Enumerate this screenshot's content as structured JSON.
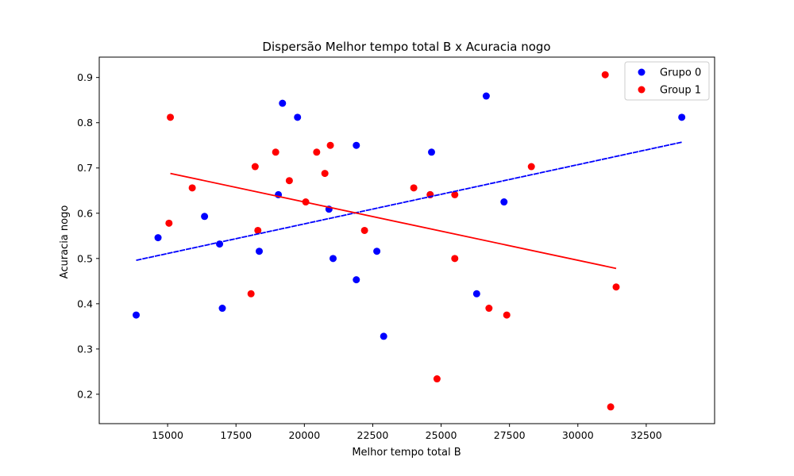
{
  "chart_data": {
    "type": "scatter",
    "title": "Dispersão Melhor tempo total B x Acuracia nogo",
    "xlabel": "Melhor tempo total B",
    "ylabel": "Acuracia nogo",
    "xlim": [
      12500,
      35000
    ],
    "ylim": [
      0.135,
      0.945
    ],
    "xticks": [
      15000,
      17500,
      20000,
      22500,
      25000,
      27500,
      30000,
      32500
    ],
    "yticks": [
      0.2,
      0.3,
      0.4,
      0.5,
      0.6,
      0.7,
      0.8,
      0.9
    ],
    "grid": false,
    "legend_position": "top-right",
    "series": [
      {
        "name": "Grupo 0",
        "color": "#0000ff",
        "points": [
          [
            13850,
            0.375
          ],
          [
            14650,
            0.546
          ],
          [
            16350,
            0.593
          ],
          [
            16900,
            0.532
          ],
          [
            17000,
            0.39
          ],
          [
            18350,
            0.516
          ],
          [
            19050,
            0.641
          ],
          [
            19200,
            0.843
          ],
          [
            19750,
            0.812
          ],
          [
            20900,
            0.609
          ],
          [
            21050,
            0.5
          ],
          [
            21900,
            0.75
          ],
          [
            21900,
            0.453
          ],
          [
            22650,
            0.516
          ],
          [
            22900,
            0.328
          ],
          [
            24650,
            0.735
          ],
          [
            24600,
            0.641
          ],
          [
            26300,
            0.422
          ],
          [
            26650,
            0.859
          ],
          [
            27300,
            0.625
          ],
          [
            33800,
            0.812
          ]
        ],
        "trend": {
          "x": [
            13850,
            33800
          ],
          "y": [
            0.496,
            0.757
          ]
        }
      },
      {
        "name": "Group 1",
        "color": "#ff0000",
        "points": [
          [
            15100,
            0.812
          ],
          [
            15050,
            0.578
          ],
          [
            15900,
            0.656
          ],
          [
            18050,
            0.422
          ],
          [
            18200,
            0.703
          ],
          [
            18300,
            0.562
          ],
          [
            18950,
            0.735
          ],
          [
            19450,
            0.672
          ],
          [
            20050,
            0.625
          ],
          [
            20450,
            0.735
          ],
          [
            20750,
            0.688
          ],
          [
            20950,
            0.75
          ],
          [
            22200,
            0.562
          ],
          [
            24000,
            0.656
          ],
          [
            24600,
            0.641
          ],
          [
            25500,
            0.641
          ],
          [
            25500,
            0.5
          ],
          [
            24850,
            0.234
          ],
          [
            26750,
            0.39
          ],
          [
            27400,
            0.375
          ],
          [
            28300,
            0.703
          ],
          [
            31000,
            0.906
          ],
          [
            31200,
            0.172
          ],
          [
            31400,
            0.437
          ]
        ],
        "trend": {
          "x": [
            15100,
            31400
          ],
          "y": [
            0.688,
            0.478
          ]
        }
      }
    ]
  }
}
